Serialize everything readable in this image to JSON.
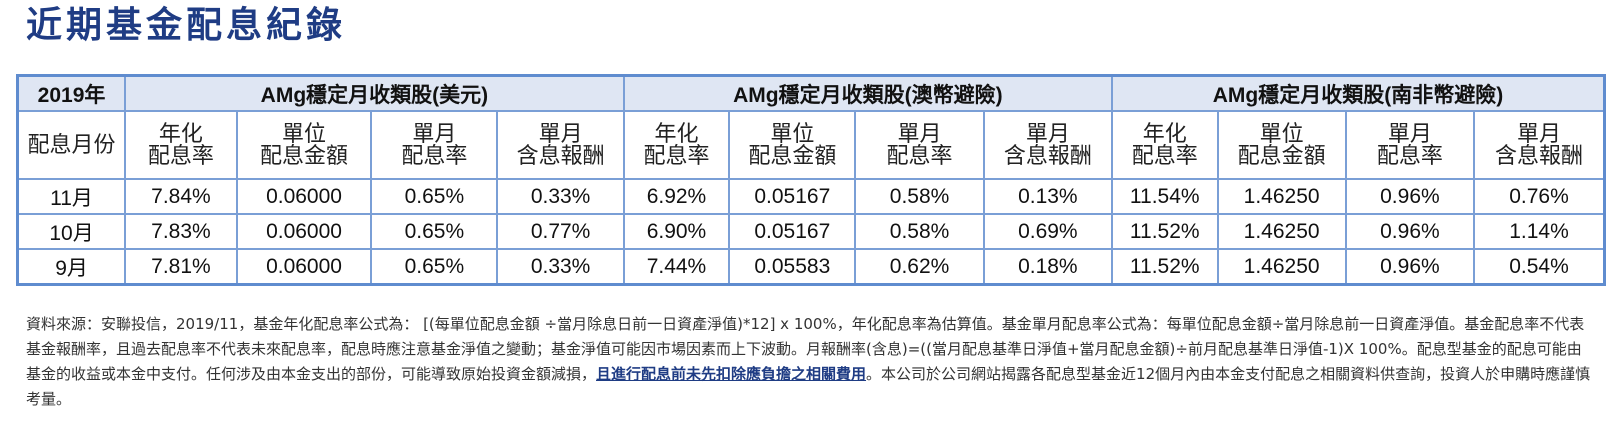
{
  "title": "近期基金配息紀錄",
  "table": {
    "year": "2019年",
    "groups": [
      "AMg穩定月收類股(美元)",
      "AMg穩定月收類股(澳幣避險)",
      "AMg穩定月收類股(南非幣避險)"
    ],
    "month_col_label": "配息月份",
    "sub_headers": [
      {
        "l1": "年化",
        "l2": "配息率"
      },
      {
        "l1": "單位",
        "l2": "配息金額"
      },
      {
        "l1": "單月",
        "l2": "配息率"
      },
      {
        "l1": "單月",
        "l2": "含息報酬"
      }
    ],
    "rows": [
      {
        "month": "11月",
        "cells": [
          "7.84%",
          "0.06000",
          "0.65%",
          "0.33%",
          "6.92%",
          "0.05167",
          "0.58%",
          "0.13%",
          "11.54%",
          "1.46250",
          "0.96%",
          "0.76%"
        ]
      },
      {
        "month": "10月",
        "cells": [
          "7.83%",
          "0.06000",
          "0.65%",
          "0.77%",
          "6.90%",
          "0.05167",
          "0.58%",
          "0.69%",
          "11.52%",
          "1.46250",
          "0.96%",
          "1.14%"
        ]
      },
      {
        "month": "9月",
        "cells": [
          "7.81%",
          "0.06000",
          "0.65%",
          "0.33%",
          "7.44%",
          "0.05583",
          "0.62%",
          "0.18%",
          "11.52%",
          "1.46250",
          "0.96%",
          "0.54%"
        ]
      }
    ]
  },
  "notes": {
    "text1": "資料來源：安聯投信，2019/11，基金年化配息率公式為： [(每單位配息金額 ÷當月除息日前一日資產淨值)*12] x 100%，年化配息率為估算值。基金單月配息率公式為：每單位配息金額÷當月除息前一日資產淨值。基金配息率不代表基金報酬率，且過去配息率不代表未來配息率，配息時應注意基金淨值之變動；基金淨值可能因市場因素而上下波動。月報酬率(含息)=((當月配息基準日淨值+當月配息金額)÷前月配息基準日淨值-1)X 100%。配息型基金的配息可能由基金的收益或本金中支付。任何涉及由本金支出的部份，可能導致原始投資金額減損，",
    "highlight": "且進行配息前未先扣除應負擔之相關費用",
    "text2": "。本公司於公司網站揭露各配息型基金近12個月內由本金支付配息之相關資料供查詢，投資人於申購時應謹慎考量。"
  }
}
